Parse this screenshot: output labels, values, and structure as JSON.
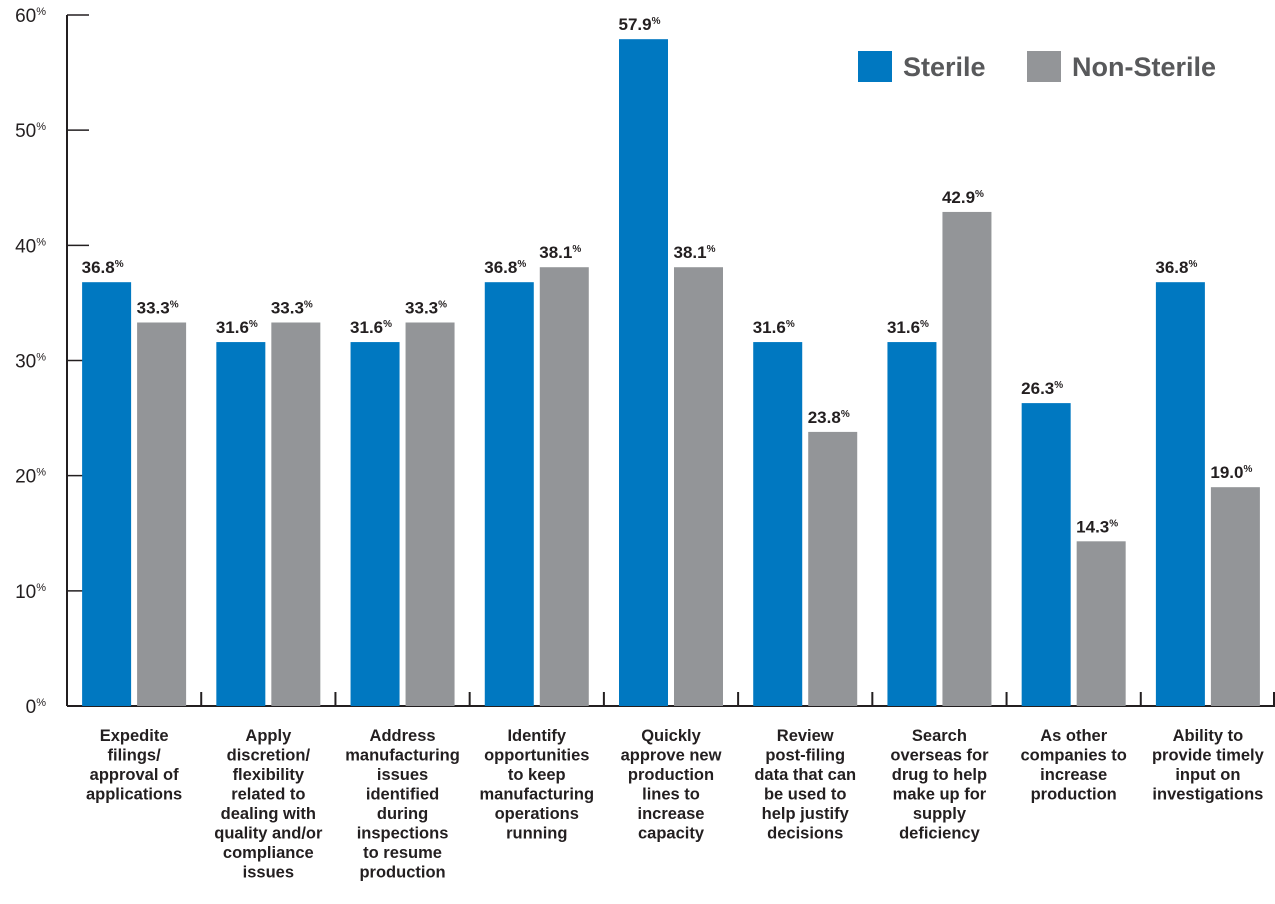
{
  "chart_data": {
    "type": "bar",
    "title": "",
    "xlabel": "",
    "ylabel": "",
    "ylim": [
      0,
      60
    ],
    "y_ticks": [
      {
        "value": 0,
        "label": "0",
        "suffix": "%"
      },
      {
        "value": 10,
        "label": "10",
        "suffix": "%"
      },
      {
        "value": 20,
        "label": "20",
        "suffix": "%"
      },
      {
        "value": 30,
        "label": "30",
        "suffix": "%"
      },
      {
        "value": 40,
        "label": "40",
        "suffix": "%"
      },
      {
        "value": 50,
        "label": "50",
        "suffix": "%"
      },
      {
        "value": 60,
        "label": "60",
        "suffix": "%"
      }
    ],
    "value_suffix": "%",
    "grid": false,
    "legend_position": "top-right",
    "categories": [
      [
        "Expedite",
        "filings/",
        "approval of",
        "applications"
      ],
      [
        "Apply",
        "discretion/",
        "flexibility",
        "related to",
        "dealing with",
        "quality and/or",
        "compliance",
        "issues"
      ],
      [
        "Address",
        "manufacturing",
        "issues",
        "identified",
        "during",
        "inspections",
        "to resume",
        "production"
      ],
      [
        "Identify",
        "opportunities",
        "to keep",
        "manufacturing",
        "operations",
        "running"
      ],
      [
        "Quickly",
        "approve new",
        "production",
        "lines to",
        "increase",
        "capacity"
      ],
      [
        "Review",
        "post-filing",
        "data that can",
        "be used to",
        "help justify",
        "decisions"
      ],
      [
        "Search",
        "overseas for",
        "drug to help",
        "make up for",
        "supply",
        "deficiency"
      ],
      [
        "As other",
        "companies to",
        "increase",
        "production"
      ],
      [
        "Ability to",
        "provide timely",
        "input on",
        "investigations"
      ]
    ],
    "series": [
      {
        "name": "Sterile",
        "color": "#0078c1",
        "values": [
          36.8,
          31.6,
          31.6,
          36.8,
          57.9,
          31.6,
          31.6,
          26.3,
          36.8
        ],
        "labels": [
          "36.8",
          "31.6",
          "31.6",
          "36.8",
          "57.9",
          "31.6",
          "31.6",
          "26.3",
          "36.8"
        ]
      },
      {
        "name": "Non-Sterile",
        "color": "#939598",
        "values": [
          33.3,
          33.3,
          33.3,
          38.1,
          38.1,
          23.8,
          42.9,
          14.3,
          19.0
        ],
        "labels": [
          "33.3",
          "33.3",
          "33.3",
          "38.1",
          "38.1",
          "23.8",
          "42.9",
          "14.3",
          "19.0"
        ]
      }
    ]
  }
}
